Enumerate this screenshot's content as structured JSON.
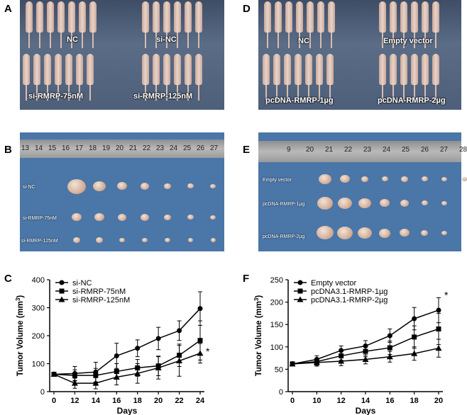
{
  "panels": {
    "A": {
      "letter": "A",
      "groups": [
        "NC",
        "si-NC",
        "si-RMRP-75nM",
        "si-RMRP-125nM"
      ]
    },
    "D": {
      "letter": "D",
      "groups": [
        "NC",
        "Empty vector",
        "pcDNA-RMRP-1µg",
        "pcDNA-RMRP-2µg"
      ]
    },
    "B": {
      "letter": "B",
      "ruler": [
        "13",
        "14",
        "15",
        "16",
        "17",
        "18",
        "19",
        "20",
        "21",
        "22",
        "23",
        "24",
        "25",
        "26",
        "27"
      ],
      "rows": [
        "si-NC",
        "si-RMRP-75nM",
        "si-RMRP-125nM"
      ]
    },
    "E": {
      "letter": "E",
      "ruler": [
        "9",
        "20",
        "21",
        "22",
        "23",
        "24",
        "25",
        "26",
        "27",
        "28"
      ],
      "rows": [
        "Empty vector",
        "pcDNA-RMRP-1µg",
        "pcDNA-RMRP-2µg"
      ]
    },
    "C": {
      "letter": "C"
    },
    "F": {
      "letter": "F"
    }
  },
  "colors": {
    "line": "#000000",
    "background": "#ffffff"
  },
  "chart_data": [
    {
      "id": "C",
      "type": "line",
      "title": "",
      "xlabel": "Days",
      "ylabel": "Tumor Volume (mm³)",
      "ylabel_base": "Tumor Volume (mm",
      "ylabel_sup": "3",
      "ylabel_end": ")",
      "x": [
        0,
        12,
        14,
        16,
        18,
        20,
        22,
        24
      ],
      "xlim": [
        0,
        24
      ],
      "ylim": [
        0,
        400
      ],
      "xticks": [
        "0",
        "12",
        "14",
        "16",
        "18",
        "20",
        "22",
        "24"
      ],
      "yticks": [
        "0",
        "100",
        "200",
        "300",
        "400"
      ],
      "annotation": "*",
      "legend_position": "top-left",
      "series": [
        {
          "name": "si-NC",
          "marker": "circle",
          "values": [
            62,
            65,
            70,
            128,
            155,
            190,
            218,
            297
          ],
          "errors": [
            0,
            25,
            35,
            45,
            30,
            40,
            35,
            60
          ]
        },
        {
          "name": "si-RMRP-75nM",
          "marker": "square",
          "values": [
            62,
            58,
            58,
            72,
            85,
            92,
            130,
            183
          ],
          "errors": [
            0,
            20,
            25,
            28,
            30,
            35,
            40,
            70
          ]
        },
        {
          "name": "si-RMRP-125nM",
          "marker": "triangle",
          "values": [
            62,
            30,
            30,
            52,
            65,
            85,
            110,
            137
          ],
          "errors": [
            0,
            18,
            20,
            28,
            35,
            40,
            55,
            35
          ]
        }
      ]
    },
    {
      "id": "F",
      "type": "line",
      "title": "",
      "xlabel": "Days",
      "ylabel": "Tumor Volume (mm³)",
      "ylabel_base": "Tumor Volume (mm",
      "ylabel_sup": "3",
      "ylabel_end": ")",
      "x": [
        0,
        10,
        12,
        14,
        16,
        18,
        20
      ],
      "xlim": [
        0,
        20
      ],
      "ylim": [
        0,
        250
      ],
      "xticks": [
        "0",
        "10",
        "12",
        "14",
        "16",
        "18",
        "20"
      ],
      "yticks": [
        "0",
        "50",
        "100",
        "150",
        "200",
        "250"
      ],
      "annotation": "*",
      "legend_position": "top-left",
      "series": [
        {
          "name": "Empty vector",
          "marker": "circle",
          "values": [
            62,
            72,
            92,
            102,
            125,
            163,
            182
          ],
          "errors": [
            0,
            8,
            10,
            12,
            15,
            25,
            28
          ]
        },
        {
          "name": "pcDNA3.1-RMRP-1µg",
          "marker": "square",
          "values": [
            62,
            67,
            80,
            90,
            98,
            122,
            140
          ],
          "errors": [
            0,
            8,
            10,
            12,
            15,
            25,
            35
          ]
        },
        {
          "name": "pcDNA3.1-RMRP-2µg",
          "marker": "triangle",
          "values": [
            62,
            65,
            68,
            72,
            78,
            85,
            97
          ],
          "errors": [
            0,
            8,
            10,
            10,
            12,
            15,
            20
          ]
        }
      ]
    }
  ]
}
